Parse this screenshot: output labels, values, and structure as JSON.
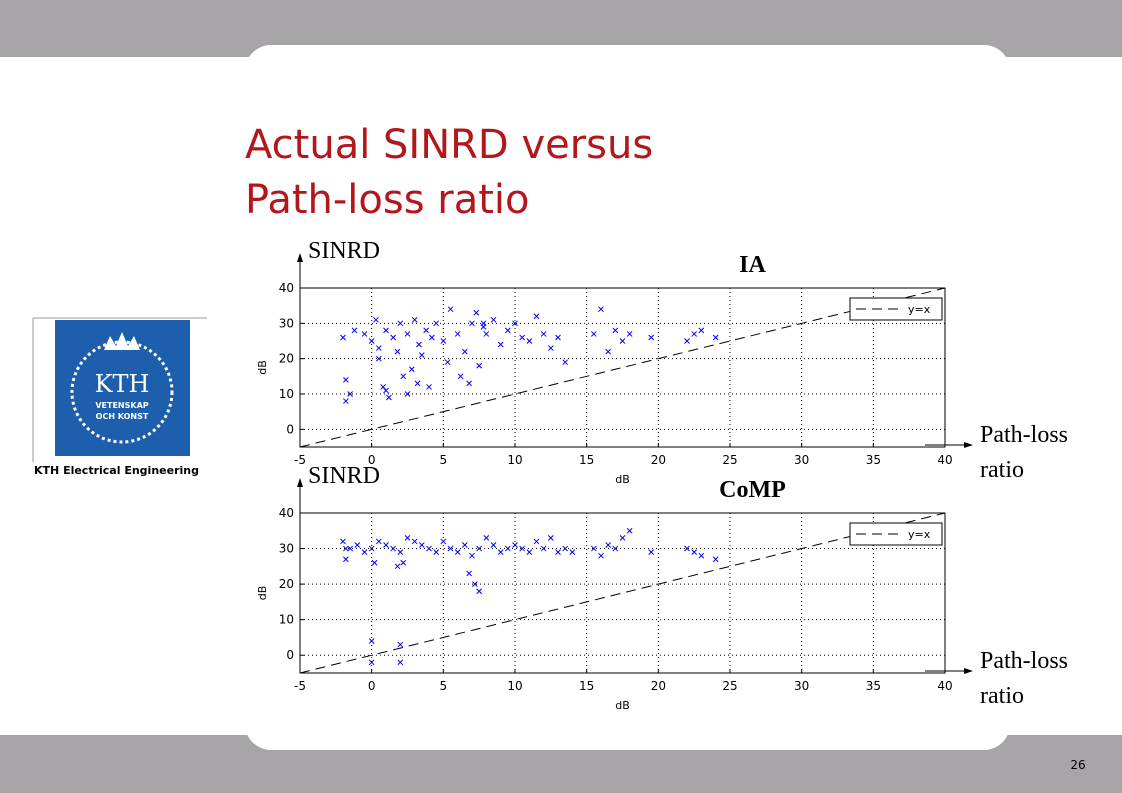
{
  "title_lines": [
    "Actual SINRD versus",
    "Path-loss ratio"
  ],
  "logo": {
    "name": "KTH",
    "motto": [
      "VETENSKAP",
      "OCH KONST"
    ],
    "caption": "KTH Electrical Engineering"
  },
  "page_number": 26,
  "chart_data": [
    {
      "type": "scatter",
      "title": "IA",
      "xlabel": "dB",
      "ylabel": "dB",
      "y_arrow_label": "SINRD",
      "x_arrow_label": [
        "Path-loss",
        "ratio"
      ],
      "xlim": [
        -5,
        40
      ],
      "ylim": [
        -5,
        40
      ],
      "xticks": [
        -5,
        0,
        5,
        10,
        15,
        20,
        25,
        30,
        35,
        40
      ],
      "yticks": [
        0,
        10,
        20,
        30,
        40
      ],
      "grid": true,
      "legend": "upper right",
      "series": [
        {
          "color": "#0000ff",
          "marker": "x",
          "x": [
            -2,
            -1.8,
            -1.5,
            -1.2,
            -0.5,
            0,
            0.3,
            0.5,
            0.8,
            1,
            1.2,
            1.5,
            1.8,
            2,
            2.2,
            2.5,
            2.8,
            3,
            3.3,
            3.5,
            3.8,
            4,
            4.2,
            4.5,
            5,
            5.3,
            5.5,
            6,
            6.2,
            6.5,
            7,
            7.3,
            7.5,
            7.8,
            8,
            8.5,
            9,
            9.5,
            10,
            10.5,
            11,
            11.5,
            12,
            12.5,
            13,
            13.5,
            15.5,
            16,
            16.5,
            17,
            17.5,
            18,
            19.5,
            22,
            22.5,
            23,
            24,
            2.5,
            3.2,
            1,
            0.5,
            6.8,
            7.8,
            -1.8
          ],
          "y": [
            26,
            14,
            10,
            28,
            27,
            25,
            31,
            20,
            12,
            28,
            9,
            26,
            22,
            30,
            15,
            27,
            17,
            31,
            24,
            21,
            28,
            12,
            26,
            30,
            25,
            19,
            34,
            27,
            15,
            22,
            30,
            33,
            18,
            29,
            27,
            31,
            24,
            28,
            30,
            26,
            25,
            32,
            27,
            23,
            26,
            19,
            27,
            34,
            22,
            28,
            25,
            27,
            26,
            25,
            27,
            28,
            26,
            10,
            13,
            11,
            23,
            13,
            30,
            8
          ]
        },
        {
          "name": "y=x",
          "color": "#000000",
          "dash": true,
          "x": [
            -5,
            40
          ],
          "y": [
            -5,
            40
          ]
        }
      ]
    },
    {
      "type": "scatter",
      "title": "CoMP",
      "xlabel": "dB",
      "ylabel": "dB",
      "y_arrow_label": "SINRD",
      "x_arrow_label": [
        "Path-loss",
        "ratio"
      ],
      "xlim": [
        -5,
        40
      ],
      "ylim": [
        -5,
        40
      ],
      "xticks": [
        -5,
        0,
        5,
        10,
        15,
        20,
        25,
        30,
        35,
        40
      ],
      "yticks": [
        0,
        10,
        20,
        30,
        40
      ],
      "grid": true,
      "legend": "upper right",
      "series": [
        {
          "color": "#0000ff",
          "marker": "x",
          "x": [
            -2,
            -1.8,
            -1.5,
            -1,
            -0.5,
            0,
            0.5,
            1,
            1.5,
            2,
            2.5,
            3,
            3.5,
            4,
            4.5,
            5,
            5.5,
            6,
            6.5,
            7,
            7.5,
            8,
            8.5,
            9,
            9.5,
            10,
            10.5,
            11,
            11.5,
            12,
            12.5,
            13,
            13.5,
            14,
            15.5,
            16,
            16.5,
            17,
            17.5,
            18,
            19.5,
            22,
            22.5,
            23,
            24,
            0,
            0,
            2,
            2,
            1.8,
            6.8,
            7.2,
            7.5,
            2.2,
            0.2,
            -1.8
          ],
          "y": [
            32,
            27,
            30,
            31,
            29,
            30,
            32,
            31,
            30,
            29,
            33,
            32,
            31,
            30,
            29,
            32,
            30,
            29,
            31,
            28,
            30,
            33,
            31,
            29,
            30,
            31,
            30,
            29,
            32,
            30,
            33,
            29,
            30,
            29,
            30,
            28,
            31,
            30,
            33,
            35,
            29,
            30,
            29,
            28,
            27,
            4,
            -2,
            3,
            -2,
            25,
            23,
            20,
            18,
            26,
            26,
            30
          ]
        },
        {
          "name": "y=x",
          "color": "#000000",
          "dash": true,
          "x": [
            -5,
            40
          ],
          "y": [
            -5,
            40
          ]
        }
      ]
    }
  ]
}
